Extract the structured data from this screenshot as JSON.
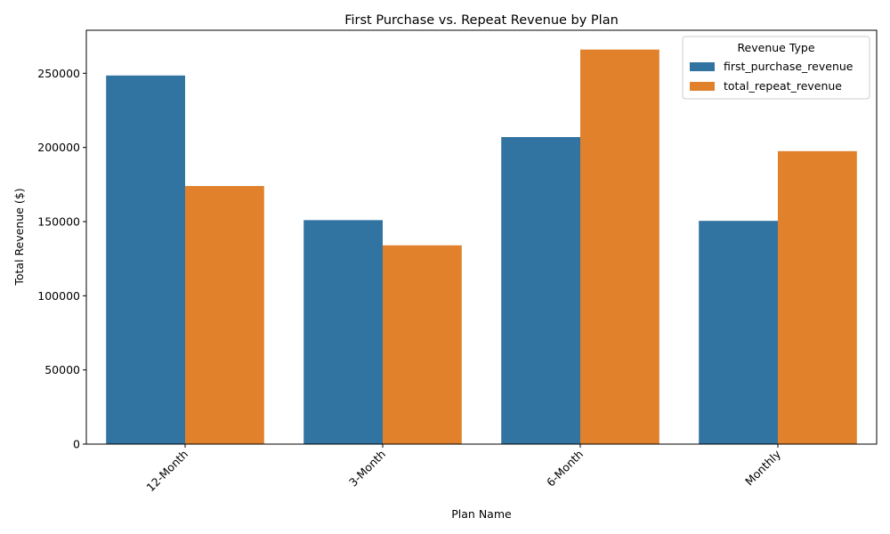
{
  "chart_data": {
    "type": "bar",
    "title": "First Purchase vs. Repeat Revenue by Plan",
    "xlabel": "Plan Name",
    "ylabel": "Total Revenue ($)",
    "categories": [
      "12-Month",
      "3-Month",
      "6-Month",
      "Monthly"
    ],
    "series": [
      {
        "name": "first_purchase_revenue",
        "color": "#3274a1",
        "values": [
          248500,
          151000,
          207000,
          150500
        ]
      },
      {
        "name": "total_repeat_revenue",
        "color": "#e1812c",
        "values": [
          174000,
          134000,
          266000,
          197500
        ]
      }
    ],
    "ylim": [
      0,
      279000
    ],
    "yticks": [
      0,
      50000,
      100000,
      150000,
      200000,
      250000
    ],
    "ytick_labels": [
      "0",
      "50000",
      "100000",
      "150000",
      "200000",
      "250000"
    ],
    "grid": false,
    "legend": {
      "title": "Revenue Type",
      "placement": "top-right"
    },
    "xtick_rotation_deg": 45
  }
}
